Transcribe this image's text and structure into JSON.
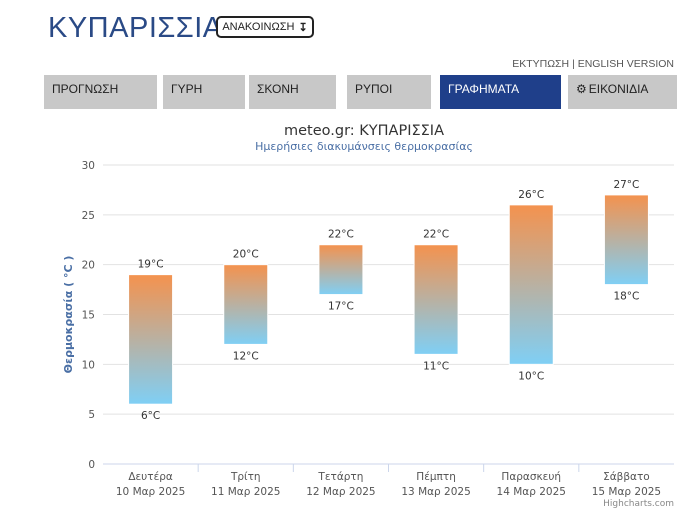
{
  "header": {
    "title": "ΚΥΠΑΡΙΣΣΙΑ",
    "announce_label": "ΑΝΑΚΟΙΝΩΣΗ",
    "announce_icon": "arrow-down-icon",
    "print_label": "ΕΚΤΥΠΩΣΗ",
    "separator": "|",
    "english_label": "ENGLISH VERSION"
  },
  "tabs": [
    {
      "label": "ΠΡΟΓΝΩΣΗ",
      "active": false
    },
    {
      "label": "ΓΥΡΗ",
      "active": false
    },
    {
      "label": "ΣΚΟΝΗ",
      "active": false
    },
    {
      "label": "ΡΥΠΟΙ",
      "active": false
    },
    {
      "label": "ΓΡΑΦΗΜΑΤΑ",
      "active": true
    },
    {
      "label": "ΕΙΚΟΝΙΔΙΑ",
      "active": false,
      "icon": "gear-icon"
    }
  ],
  "colors": {
    "tab_bg": "#c8c8c8",
    "tab_active": "#1f3f8a",
    "bar_top": "#f4924e",
    "bar_bottom": "#7fcff5"
  },
  "chart_data": {
    "type": "bar",
    "title": "meteo.gr: ΚΥΠΑΡΙΣΣΙΑ",
    "subtitle": "Ημερήσιες διακυμάνσεις θερμοκρασίας",
    "ylabel": "Θερμοκρασία ( °C )",
    "ylim": [
      0,
      30
    ],
    "yticks": [
      0,
      5,
      10,
      15,
      20,
      25,
      30
    ],
    "categories": [
      [
        "Δευτέρα",
        "10 Μαρ 2025"
      ],
      [
        "Τρίτη",
        "11 Μαρ 2025"
      ],
      [
        "Τετάρτη",
        "12 Μαρ 2025"
      ],
      [
        "Πέμπτη",
        "13 Μαρ 2025"
      ],
      [
        "Παρασκευή",
        "14 Μαρ 2025"
      ],
      [
        "Σάββατο",
        "15 Μαρ 2025"
      ]
    ],
    "series": [
      {
        "values_min": [
          6,
          12,
          17,
          11,
          10,
          18
        ],
        "values_max": [
          19,
          20,
          22,
          22,
          26,
          27
        ]
      }
    ],
    "unit": "°C",
    "credits": "Highcharts.com"
  }
}
